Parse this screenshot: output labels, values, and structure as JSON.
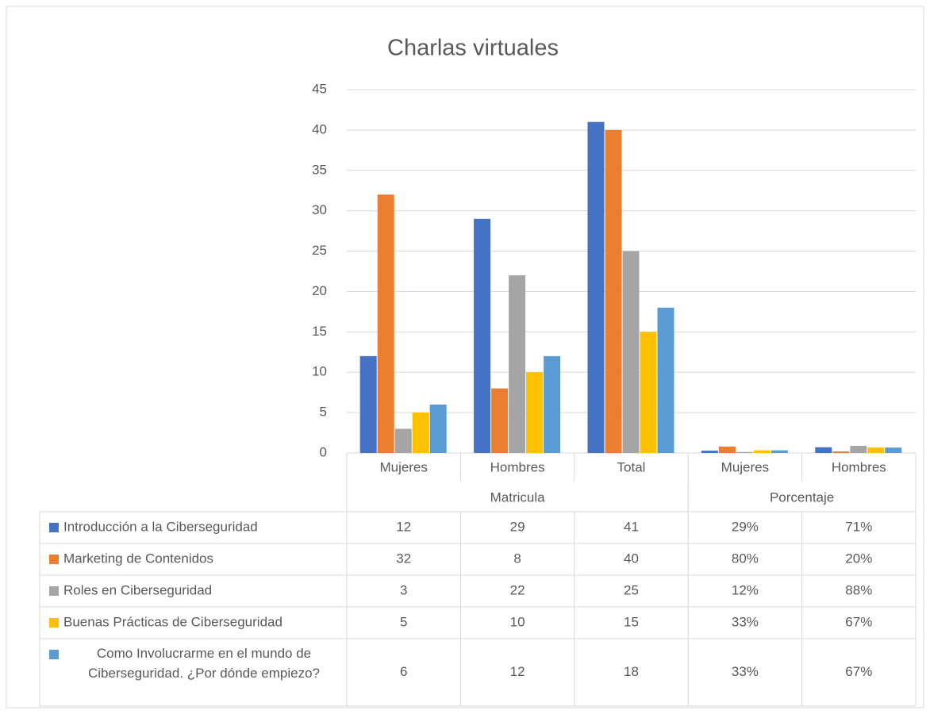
{
  "chart_data": {
    "type": "bar",
    "title": "Charlas virtuales",
    "categories": [
      "Mujeres",
      "Hombres",
      "Total",
      "Mujeres",
      "Hombres"
    ],
    "groups": [
      {
        "label": "Matricula",
        "span": 3
      },
      {
        "label": "Porcentaje",
        "span": 2
      }
    ],
    "series": [
      {
        "name": "Introducción a la Ciberseguridad",
        "color": "#4472c4",
        "values": [
          12,
          29,
          41,
          0.29,
          0.71
        ],
        "value_labels": [
          "12",
          "29",
          "41",
          "29%",
          "71%"
        ]
      },
      {
        "name": "Marketing de Contenidos",
        "color": "#ed7d31",
        "values": [
          32,
          8,
          40,
          0.8,
          0.2
        ],
        "value_labels": [
          "32",
          "8",
          "40",
          "80%",
          "20%"
        ]
      },
      {
        "name": "Roles en Ciberseguridad",
        "color": "#a5a5a5",
        "values": [
          3,
          22,
          25,
          0.12,
          0.88
        ],
        "value_labels": [
          "3",
          "22",
          "25",
          "12%",
          "88%"
        ]
      },
      {
        "name": "Buenas Prácticas de Ciberseguridad",
        "color": "#ffc000",
        "values": [
          5,
          10,
          15,
          0.33,
          0.67
        ],
        "value_labels": [
          "5",
          "10",
          "15",
          "33%",
          "67%"
        ]
      },
      {
        "name": "Como Involucrarme en el mundo de Ciberseguridad. ¿Por dónde empiezo?",
        "color": "#5b9bd5",
        "values": [
          6,
          12,
          18,
          0.33,
          0.67
        ],
        "value_labels": [
          "6",
          "12",
          "18",
          "33%",
          "67%"
        ]
      }
    ],
    "ylim": [
      0,
      45
    ],
    "yticks": [
      0,
      5,
      10,
      15,
      20,
      25,
      30,
      35,
      40,
      45
    ],
    "grid": true
  }
}
